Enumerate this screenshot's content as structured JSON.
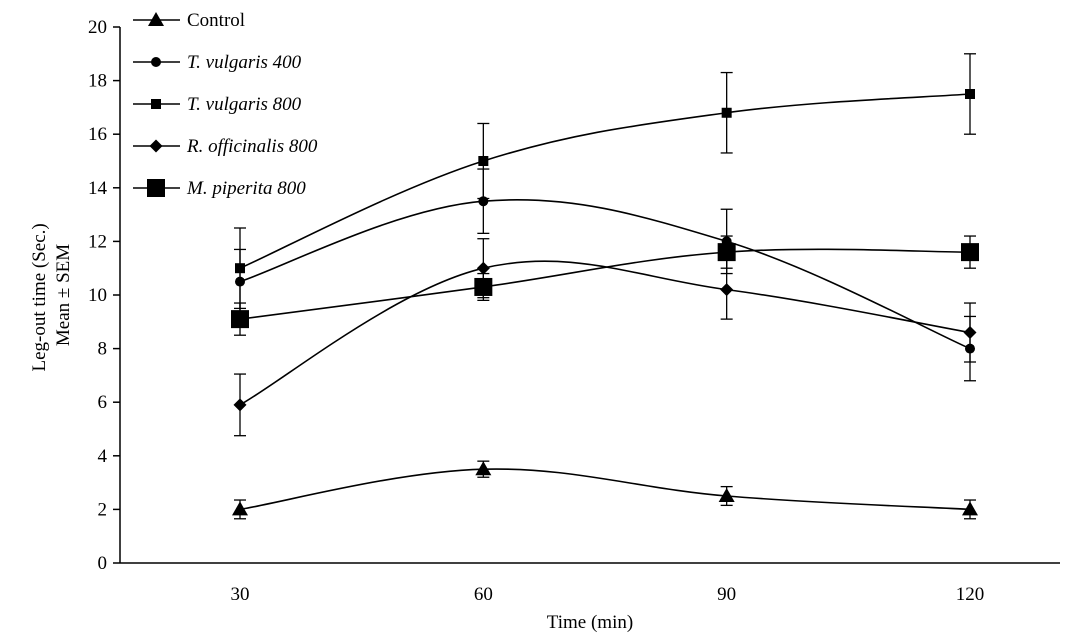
{
  "chart_data": {
    "type": "line",
    "xlabel": "Time (min)",
    "ylabel_lines": [
      "Leg-out time (Sec.)",
      "Mean ± SEM"
    ],
    "x": [
      30,
      60,
      90,
      120
    ],
    "x_tick_labels": [
      "30",
      "60",
      "90",
      "120"
    ],
    "ylim": [
      0,
      20
    ],
    "y_ticks": [
      0,
      2,
      4,
      6,
      8,
      10,
      12,
      14,
      16,
      18,
      20
    ],
    "y_tick_labels": [
      "0",
      "2",
      "4",
      "6",
      "8",
      "10",
      "12",
      "14",
      "16",
      "18",
      "20"
    ],
    "grid": false,
    "legend_position": "top-left",
    "series": [
      {
        "name": "Control",
        "italic": false,
        "marker": "triangle",
        "values": [
          2.0,
          3.5,
          2.5,
          2.0
        ],
        "errors": [
          0.35,
          0.3,
          0.35,
          0.35
        ]
      },
      {
        "name": "T. vulgaris 400",
        "italic": true,
        "marker": "circle",
        "values": [
          10.5,
          13.5,
          12.0,
          8.0
        ],
        "errors": [
          1.2,
          1.2,
          1.2,
          1.2
        ]
      },
      {
        "name": "T. vulgaris 800",
        "italic": true,
        "marker": "square-small",
        "values": [
          11.0,
          15.0,
          16.8,
          17.5
        ],
        "errors": [
          1.5,
          1.4,
          1.5,
          1.5
        ]
      },
      {
        "name": "R. officinalis 800",
        "italic": true,
        "marker": "diamond",
        "values": [
          5.9,
          11.0,
          10.2,
          8.6
        ],
        "errors": [
          1.15,
          1.1,
          1.1,
          1.1
        ]
      },
      {
        "name": "M. piperita 800",
        "italic": true,
        "marker": "square-large",
        "values": [
          9.1,
          10.3,
          11.6,
          11.6
        ],
        "errors": [
          0.6,
          0.5,
          0.6,
          0.6
        ]
      }
    ]
  }
}
